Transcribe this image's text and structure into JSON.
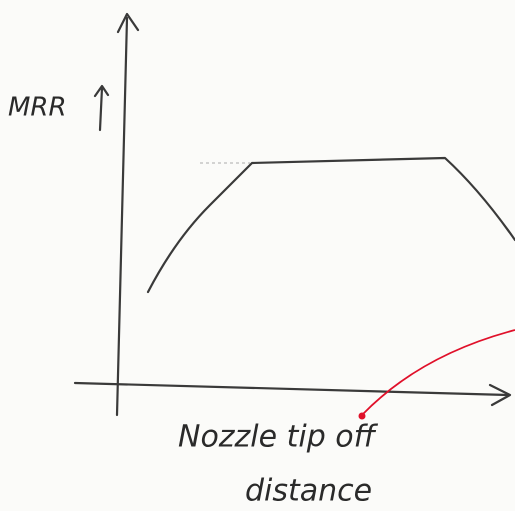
{
  "y_axis": {
    "label": "MRR"
  },
  "x_axis": {
    "label_lines": [
      "Nozzle tip off",
      "distance"
    ]
  }
}
